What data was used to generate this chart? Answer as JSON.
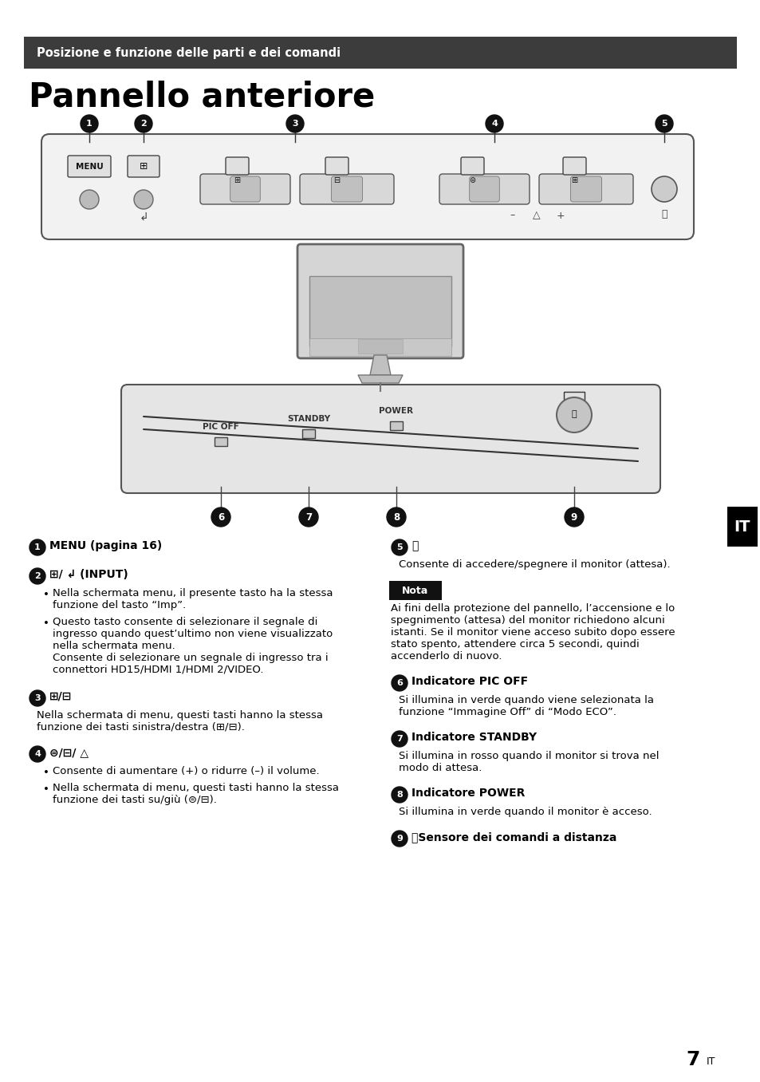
{
  "header_text": "Posizione e funzione delle parti e dei comandi",
  "title": "Pannello anteriore",
  "header_bg": "#3c3c3c",
  "header_text_color": "#ffffff",
  "page_bg": "#ffffff",
  "body_text_color": "#000000",
  "page_number": "7",
  "it_badge_bg": "#000000",
  "it_badge_text": "IT",
  "nota_title": "Nota",
  "nota_text": "Ai fini della protezione del pannello, l’accensione e lo\nspegnimento (attesa) del monitor richiedono alcuni\nistanti. Se il monitor viene acceso subito dopo essere\nstato spento, attendere circa 5 secondi, quindi\naccenderlo di nuovo.",
  "col1_sections": [
    {
      "num": "1",
      "bold": "MENU (pagina 16)",
      "text": null,
      "bullets": null
    },
    {
      "num": "2",
      "bold": "⊞/ ↲ (INPUT)",
      "text": null,
      "bullets": [
        "Nella schermata menu, il presente tasto ha la stessa\nfunzione del tasto “Imp”.",
        "Questo tasto consente di selezionare il segnale di\ningresso quando quest’ultimo non viene visualizzato\nnella schermata menu.\nConsente di selezionare un segnale di ingresso tra i\nconnettori HD15/HDMI 1/HDMI 2/VIDEO."
      ]
    },
    {
      "num": "3",
      "bold": "⊞/⊟",
      "text": "Nella schermata di menu, questi tasti hanno la stessa\nfunzione dei tasti sinistra/destra (⊞/⊟).",
      "bullets": null
    },
    {
      "num": "4",
      "bold": "⊜/⊟/ △",
      "text": null,
      "bullets": [
        "Consente di aumentare (+) o ridurre (–) il volume.",
        "Nella schermata di menu, questi tasti hanno la stessa\nfunzione dei tasti su/giù (⊜/⊟)."
      ]
    }
  ],
  "col2_sections": [
    {
      "num": "5",
      "bold": "⏻",
      "text": "Consente di accedere/spegnere il monitor (attesa).",
      "bullets": null
    },
    {
      "num": "6",
      "bold": "Indicatore PIC OFF",
      "text": "Si illumina in verde quando viene selezionata la\nfunzione “Immagine Off” di “Modo ECO”.",
      "bullets": null
    },
    {
      "num": "7",
      "bold": "Indicatore STANDBY",
      "text": "Si illumina in rosso quando il monitor si trova nel\nmodo di attesa.",
      "bullets": null
    },
    {
      "num": "8",
      "bold": "Indicatore POWER",
      "text": "Si illumina in verde quando il monitor è acceso.",
      "bullets": null
    },
    {
      "num": "9",
      "bold": "ⓇSensore dei comandi a distanza",
      "text": null,
      "bullets": null
    }
  ]
}
